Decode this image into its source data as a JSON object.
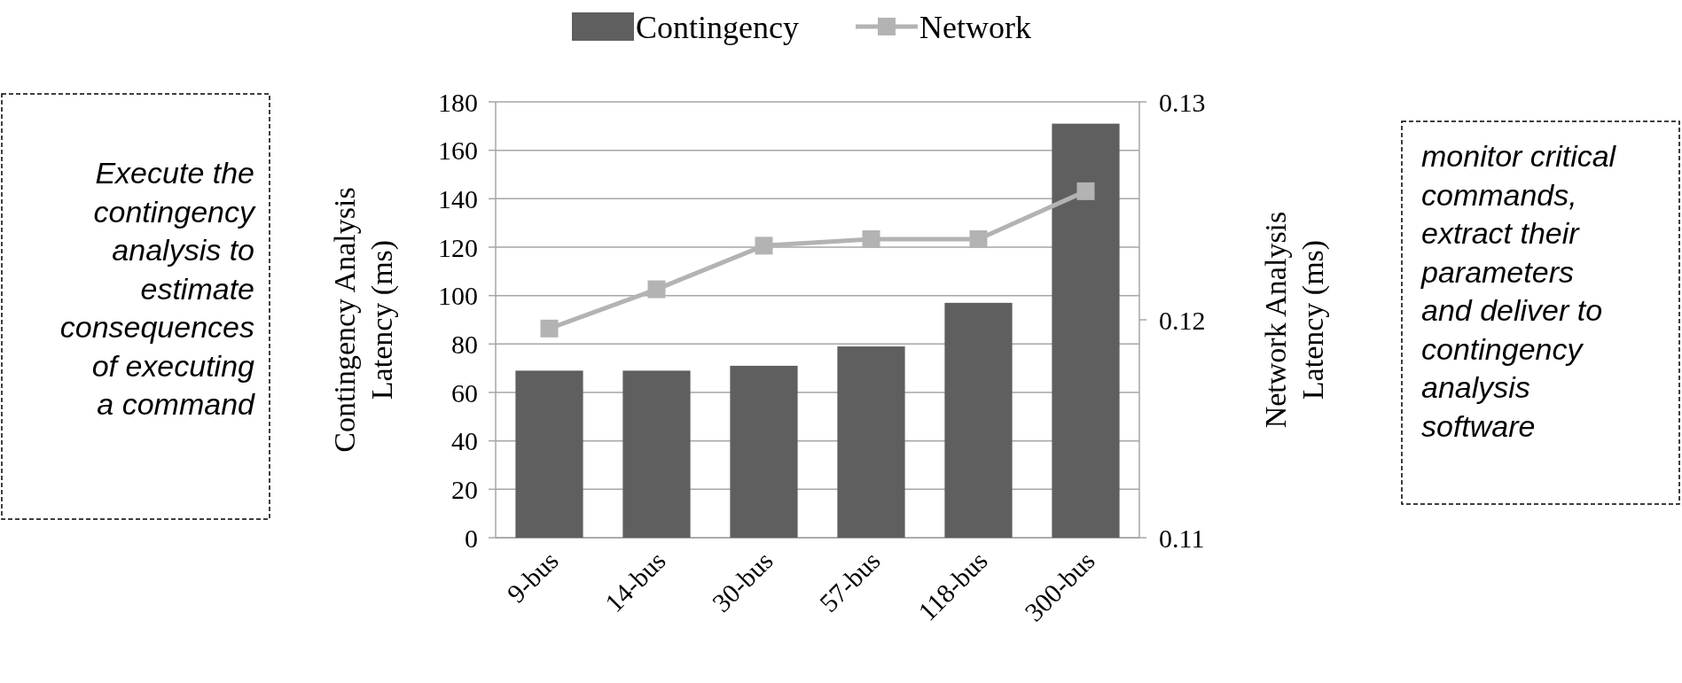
{
  "chart_data": {
    "type": "bar",
    "categories": [
      "9-bus",
      "14-bus",
      "30-bus",
      "57-bus",
      "118-bus",
      "300-bus"
    ],
    "series": [
      {
        "name": "Contingency",
        "color": "#5f5f5f",
        "values": [
          69,
          69,
          71,
          79,
          97,
          171
        ]
      },
      {
        "name": "Network",
        "type": "line",
        "axis": "y2",
        "color": "#b3b3b3",
        "marker": "square",
        "values": [
          0.1196,
          0.1214,
          0.1234,
          0.1237,
          0.1237,
          0.1259
        ]
      }
    ],
    "ylabel": "Contingency  Analysis\nLatency  (ms)",
    "y2label": "Network  Analysis\nLatency  (ms)",
    "ylim": [
      0,
      180
    ],
    "yticks": [
      0,
      20,
      40,
      60,
      80,
      100,
      120,
      140,
      160,
      180
    ],
    "y2lim": [
      0.11,
      0.13
    ],
    "y2ticks": [
      0.11,
      0.12,
      0.13
    ],
    "grid": "y",
    "legend": "top",
    "annotations": [
      "Execute the\ncontingency\nanalysis to\nestimate\nconsequences\nof executing\na command",
      "monitor critical\ncommands,\nextract their\nparameters\nand deliver to\ncontingency\nanalysis\nsoftware"
    ]
  }
}
